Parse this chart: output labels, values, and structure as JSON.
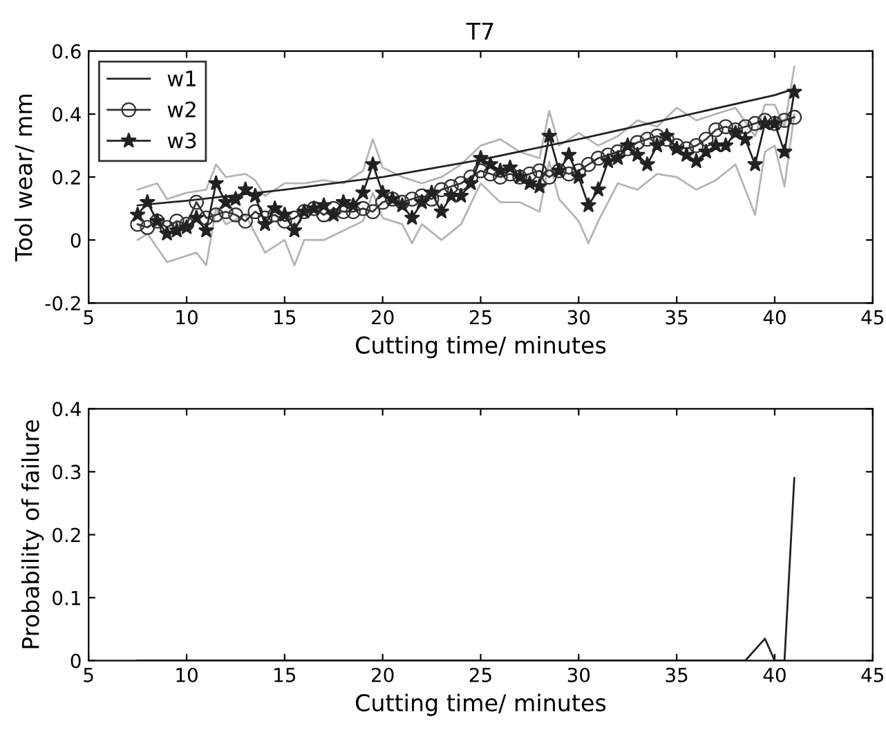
{
  "chart_data": [
    {
      "type": "line",
      "title": "T7",
      "xlabel": "Cutting time/ minutes",
      "ylabel": "Tool wear/ mm",
      "xlim": [
        5,
        45
      ],
      "xticks": [
        5,
        10,
        15,
        20,
        25,
        30,
        35,
        40,
        45
      ],
      "ylim": [
        -0.2,
        0.6
      ],
      "yticks": [
        -0.2,
        0,
        0.2,
        0.4,
        0.6
      ],
      "grid": false,
      "legend": "top left",
      "series": [
        {
          "color": "#b4b4b4",
          "marker": "none",
          "x": [
            7.5,
            8.5,
            9,
            10,
            11,
            11.5,
            12,
            13,
            13.5,
            14,
            15,
            16,
            17,
            18,
            19,
            19.5,
            20,
            21,
            22,
            23,
            24,
            25,
            26,
            27,
            28,
            28.5,
            29,
            30,
            31,
            32,
            33,
            34,
            35,
            36,
            37,
            38,
            39,
            39.5,
            40,
            40.5,
            41
          ],
          "values": [
            0.16,
            0.18,
            0.13,
            0.15,
            0.16,
            0.24,
            0.2,
            0.21,
            0.19,
            0.14,
            0.18,
            0.18,
            0.19,
            0.18,
            0.22,
            0.32,
            0.23,
            0.2,
            0.18,
            0.2,
            0.24,
            0.3,
            0.32,
            0.28,
            0.26,
            0.41,
            0.3,
            0.34,
            0.3,
            0.33,
            0.38,
            0.36,
            0.42,
            0.38,
            0.4,
            0.42,
            0.33,
            0.43,
            0.43,
            0.36,
            0.55
          ]
        },
        {
          "color": "#b4b4b4",
          "marker": "none",
          "x": [
            7.5,
            8,
            9,
            10,
            10.5,
            11,
            11.5,
            12,
            13,
            14,
            15,
            15.5,
            16,
            17,
            18,
            19,
            19.5,
            20,
            21,
            21.5,
            22,
            23,
            24,
            25,
            26,
            27,
            28,
            28.5,
            29,
            30,
            30.5,
            31,
            32,
            33,
            34,
            35,
            36,
            37,
            38,
            39,
            39.5,
            40,
            40.5,
            41
          ],
          "values": [
            0.0,
            0.02,
            -0.07,
            -0.05,
            -0.04,
            -0.08,
            0.1,
            0.05,
            0.08,
            -0.04,
            0.0,
            -0.08,
            0.0,
            0.0,
            0.03,
            0.06,
            0.15,
            0.07,
            0.05,
            -0.01,
            0.05,
            0.0,
            0.05,
            0.18,
            0.12,
            0.12,
            0.09,
            0.25,
            0.13,
            0.06,
            -0.01,
            0.06,
            0.18,
            0.16,
            0.21,
            0.2,
            0.16,
            0.19,
            0.24,
            0.08,
            0.28,
            0.3,
            0.17,
            0.4
          ]
        },
        {
          "name": "w1",
          "color": "#222222",
          "marker": "none",
          "x": [
            7.5,
            10,
            15,
            20,
            25,
            30,
            35,
            40,
            41
          ],
          "values": [
            0.11,
            0.125,
            0.16,
            0.2,
            0.255,
            0.32,
            0.39,
            0.46,
            0.48
          ]
        },
        {
          "name": "w2",
          "color": "#333333",
          "marker": "circle",
          "x": [
            7.5,
            8,
            8.5,
            9,
            9.5,
            10,
            10.5,
            11,
            11.5,
            12,
            12.5,
            13,
            13.5,
            14,
            14.5,
            15,
            15.5,
            16,
            16.5,
            17,
            17.5,
            18,
            18.5,
            19,
            19.5,
            20,
            20.5,
            21,
            21.5,
            22,
            22.5,
            23,
            23.5,
            24,
            24.5,
            25,
            25.5,
            26,
            26.5,
            27,
            27.5,
            28,
            28.5,
            29,
            29.5,
            30,
            30.5,
            31,
            31.5,
            32,
            32.5,
            33,
            33.5,
            34,
            34.5,
            35,
            35.5,
            36,
            36.5,
            37,
            37.5,
            38,
            38.5,
            39,
            39.5,
            40,
            40.5,
            41
          ],
          "values": [
            0.05,
            0.04,
            0.06,
            0.04,
            0.06,
            0.05,
            0.12,
            0.07,
            0.08,
            0.09,
            0.08,
            0.06,
            0.09,
            0.07,
            0.08,
            0.06,
            0.07,
            0.09,
            0.1,
            0.08,
            0.1,
            0.09,
            0.09,
            0.1,
            0.09,
            0.12,
            0.13,
            0.12,
            0.13,
            0.14,
            0.13,
            0.16,
            0.17,
            0.18,
            0.2,
            0.22,
            0.21,
            0.2,
            0.21,
            0.2,
            0.21,
            0.22,
            0.2,
            0.22,
            0.21,
            0.22,
            0.24,
            0.26,
            0.27,
            0.28,
            0.29,
            0.31,
            0.32,
            0.33,
            0.32,
            0.3,
            0.29,
            0.3,
            0.32,
            0.35,
            0.36,
            0.35,
            0.36,
            0.37,
            0.38,
            0.37,
            0.38,
            0.39
          ]
        },
        {
          "name": "w3",
          "color": "#222222",
          "marker": "star",
          "x": [
            7.5,
            8,
            8.5,
            9,
            9.5,
            10,
            10.5,
            11,
            11.5,
            12,
            12.5,
            13,
            13.5,
            14,
            14.5,
            15,
            15.5,
            16,
            16.5,
            17,
            17.5,
            18,
            18.5,
            19,
            19.5,
            20,
            20.5,
            21,
            21.5,
            22,
            22.5,
            23,
            23.5,
            24,
            24.5,
            25,
            25.5,
            26,
            26.5,
            27,
            27.5,
            28,
            28.5,
            29,
            29.5,
            30,
            30.5,
            31,
            31.5,
            32,
            32.5,
            33,
            33.5,
            34,
            34.5,
            35,
            35.5,
            36,
            36.5,
            37,
            37.5,
            38,
            38.5,
            39,
            39.5,
            40,
            40.5,
            41
          ],
          "values": [
            0.08,
            0.12,
            0.06,
            0.02,
            0.03,
            0.04,
            0.07,
            0.03,
            0.18,
            0.12,
            0.13,
            0.16,
            0.14,
            0.05,
            0.1,
            0.08,
            0.03,
            0.09,
            0.1,
            0.11,
            0.08,
            0.12,
            0.11,
            0.15,
            0.24,
            0.15,
            0.13,
            0.11,
            0.07,
            0.12,
            0.15,
            0.09,
            0.14,
            0.14,
            0.18,
            0.26,
            0.24,
            0.22,
            0.23,
            0.2,
            0.18,
            0.17,
            0.33,
            0.22,
            0.27,
            0.2,
            0.11,
            0.16,
            0.25,
            0.26,
            0.3,
            0.27,
            0.24,
            0.3,
            0.33,
            0.29,
            0.27,
            0.25,
            0.28,
            0.3,
            0.3,
            0.34,
            0.32,
            0.24,
            0.37,
            0.37,
            0.28,
            0.47
          ]
        }
      ]
    },
    {
      "type": "line",
      "xlabel": "Cutting time/ minutes",
      "ylabel": "Probability of failure",
      "xlim": [
        5,
        45
      ],
      "xticks": [
        5,
        10,
        15,
        20,
        25,
        30,
        35,
        40,
        45
      ],
      "ylim": [
        0,
        0.4
      ],
      "yticks": [
        0,
        0.1,
        0.2,
        0.3,
        0.4
      ],
      "grid": false,
      "series": [
        {
          "color": "#222222",
          "marker": "none",
          "x": [
            7.5,
            11.5,
            14,
            19,
            24,
            30,
            38.5,
            39.5,
            40,
            40.5,
            41
          ],
          "values": [
            0,
            0,
            0,
            0,
            0,
            0,
            0,
            0.035,
            0,
            0,
            0.29
          ]
        }
      ]
    }
  ]
}
